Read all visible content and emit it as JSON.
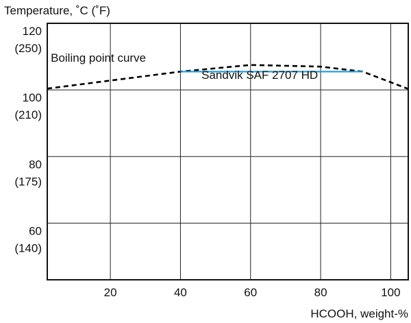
{
  "chart_data": {
    "type": "line",
    "title": "",
    "ylabel": "Temperature, ˚C (˚F)",
    "xlabel": "HCOOH, weight-%",
    "xlim": [
      2,
      105
    ],
    "ylim": [
      43,
      120
    ],
    "x_ticks": [
      {
        "value": 20,
        "label": "20"
      },
      {
        "value": 40,
        "label": "40"
      },
      {
        "value": 60,
        "label": "60"
      },
      {
        "value": 80,
        "label": "80"
      },
      {
        "value": 100,
        "label": "100"
      }
    ],
    "y_ticks": [
      {
        "value": 120,
        "label": "120",
        "sub": "(250)"
      },
      {
        "value": 100,
        "label": "100",
        "sub": "(210)"
      },
      {
        "value": 80,
        "label": "80",
        "sub": "(175)"
      },
      {
        "value": 60,
        "label": "60",
        "sub": "(140)"
      }
    ],
    "grid": true,
    "series": [
      {
        "name": "Boiling point curve",
        "style": "dashed",
        "color": "#000000",
        "x": [
          2,
          40,
          60,
          80,
          92,
          105
        ],
        "y": [
          100.4,
          105.5,
          107.5,
          107.0,
          105.5,
          100.3
        ]
      },
      {
        "name": "Sandvik SAF 2707 HD",
        "style": "solid",
        "color": "#1f9bd7",
        "x": [
          40,
          92
        ],
        "y": [
          105.5,
          105.5
        ]
      }
    ],
    "annotations": [
      {
        "text": "Boiling point curve",
        "x": 3,
        "y": 108.5
      },
      {
        "text": "Sandvik SAF 2707 HD",
        "x": 46,
        "y": 103.3
      }
    ]
  }
}
